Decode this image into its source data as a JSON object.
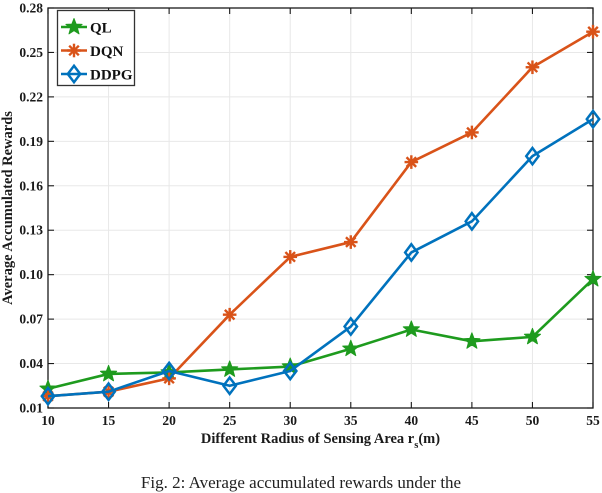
{
  "chart_data": {
    "type": "line",
    "title": "",
    "ylabel": "Average Accumulated Rewards",
    "xlabel_main": "Different Radius of Sensing Area r",
    "xlabel_sub": "s",
    "xlabel_tail": "(m)",
    "x": [
      10,
      15,
      20,
      25,
      30,
      35,
      40,
      45,
      50,
      55
    ],
    "x_tick_labels": [
      "10",
      "15",
      "20",
      "25",
      "30",
      "35",
      "40",
      "45",
      "50",
      "55"
    ],
    "y_ticks": [
      0.01,
      0.04,
      0.07,
      0.1,
      0.13,
      0.16,
      0.19,
      0.22,
      0.25,
      0.28
    ],
    "y_tick_labels": [
      "0.01",
      "0.04",
      "0.07",
      "0.10",
      "0.13",
      "0.16",
      "0.19",
      "0.22",
      "0.25",
      "0.28"
    ],
    "xlim": [
      10,
      55
    ],
    "ylim": [
      0.01,
      0.28
    ],
    "grid": true,
    "legend_position": "top-left",
    "series": [
      {
        "name": "QL",
        "color": "#1e9b1e",
        "marker": "star",
        "values": [
          0.023,
          0.033,
          0.034,
          0.036,
          0.038,
          0.05,
          0.063,
          0.055,
          0.058,
          0.097
        ]
      },
      {
        "name": "DQN",
        "color": "#d95319",
        "marker": "asterisk",
        "values": [
          0.018,
          0.021,
          0.03,
          0.073,
          0.112,
          0.122,
          0.176,
          0.196,
          0.24,
          0.264
        ]
      },
      {
        "name": "DDPG",
        "color": "#0072bd",
        "marker": "diamond",
        "values": [
          0.018,
          0.021,
          0.035,
          0.025,
          0.035,
          0.065,
          0.115,
          0.136,
          0.18,
          0.205
        ]
      }
    ],
    "colors": {
      "grid": "#e8e8e8",
      "axis": "#1a1a1a",
      "legend_border": "#333333",
      "background": "#ffffff"
    }
  },
  "figure": {
    "caption_partial": "Fig. 2: Average accumulated rewards under the"
  }
}
